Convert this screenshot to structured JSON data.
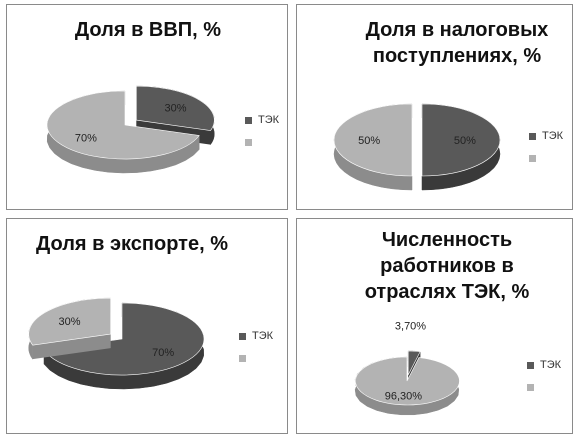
{
  "colors": {
    "dark": "#595959",
    "dark_side": "#3a3a3a",
    "light": "#b3b3b3",
    "light_side": "#8c8c8c"
  },
  "chart_data": [
    {
      "type": "pie",
      "title": "Доля в ВВП, %",
      "series": [
        {
          "values": [
            30,
            70
          ],
          "labels": [
            "30%",
            "70%"
          ]
        }
      ],
      "legend": [
        "ТЭК",
        ""
      ],
      "legend_position": "right",
      "exploded_slice": 0
    },
    {
      "type": "pie",
      "title": "Доля в налоговых поступлениях, %",
      "title_lines": [
        "Доля в налоговых",
        "поступлениях, %"
      ],
      "series": [
        {
          "values": [
            50,
            50
          ],
          "labels": [
            "50%",
            "50%"
          ]
        }
      ],
      "legend": [
        "ТЭК",
        ""
      ],
      "legend_position": "right",
      "exploded_slice": 0
    },
    {
      "type": "pie",
      "title": "Доля в экспорте, %",
      "series": [
        {
          "values": [
            70,
            30
          ],
          "labels": [
            "70%",
            "30%"
          ]
        }
      ],
      "legend": [
        "ТЭК",
        ""
      ],
      "legend_position": "right",
      "exploded_slice": 1
    },
    {
      "type": "pie",
      "title": "Численность работников в отраслях ТЭК, %",
      "title_lines": [
        "Численность",
        "работников в",
        "отраслях ТЭК, %"
      ],
      "series": [
        {
          "values": [
            3.7,
            96.3
          ],
          "labels": [
            "3,70%",
            "96,30%"
          ]
        }
      ],
      "legend": [
        "ТЭК",
        ""
      ],
      "legend_position": "right",
      "exploded_slice": 0
    }
  ]
}
